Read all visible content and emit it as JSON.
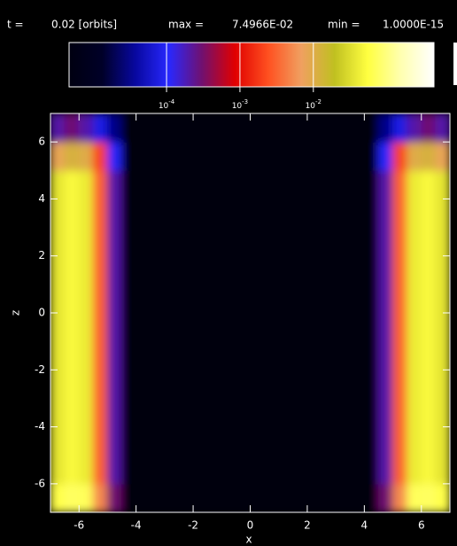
{
  "chart_data": {
    "type": "heatmap",
    "t_label": "t =",
    "t_value": "0.02 [orbits]",
    "max_label": "max =",
    "max": "7.4966E-02",
    "min_label": "min =",
    "min": "1.0000E-15",
    "colorbar": {
      "scale": "log",
      "clim": [
        4.7e-06,
        0.44
      ],
      "colormap": [
        "#000010",
        "#000028",
        "#0808a0",
        "#2828ff",
        "#701070",
        "#e00000",
        "#ff5020",
        "#f0a060",
        "#c0c020",
        "#ffff40",
        "#ffffb0",
        "#ffffff"
      ],
      "ticks": [
        {
          "value": 0.0001,
          "base": "10",
          "exponent": "-4"
        },
        {
          "value": 0.001,
          "base": "10",
          "exponent": "-3"
        },
        {
          "value": 0.01,
          "base": "10",
          "exponent": "-2"
        }
      ]
    },
    "xlabel": "x",
    "ylabel": "z",
    "xlim": [
      -7,
      7
    ],
    "ylim": [
      -7,
      7
    ],
    "xticks": [
      -6,
      -4,
      -2,
      0,
      2,
      4,
      6
    ],
    "yticks": [
      -6,
      -4,
      -2,
      0,
      2,
      4,
      6
    ],
    "x": [
      -6.75,
      -6.25,
      -5.75,
      -5.25,
      -4.75,
      -4.25,
      -3.75,
      -3.25,
      -2.75,
      -2.25,
      -1.75,
      -1.25,
      -0.75,
      -0.25,
      0.25,
      0.75,
      1.25,
      1.75,
      2.25,
      2.75,
      3.25,
      3.75,
      4.25,
      4.75,
      5.25,
      5.75,
      6.25,
      6.75
    ],
    "y": [
      -6.5,
      -5.5,
      -4.5,
      -3.5,
      -2.5,
      -1.5,
      -0.5,
      0.5,
      1.5,
      2.5,
      3.5,
      4.5,
      5.5,
      6.5
    ],
    "values": [
      [
        0.06,
        0.074,
        0.07,
        0.005,
        0.0003,
        1e-15,
        1e-15,
        1e-15,
        1e-15,
        1e-15,
        1e-15,
        1e-15,
        1e-15,
        1e-15,
        1e-15,
        1e-15,
        1e-15,
        1e-15,
        1e-15,
        1e-15,
        1e-15,
        1e-15,
        1e-15,
        0.0003,
        0.005,
        0.07,
        0.074,
        0.06
      ],
      [
        0.035,
        0.05,
        0.04,
        0.003,
        0.0002,
        1e-15,
        1e-15,
        1e-15,
        1e-15,
        1e-15,
        1e-15,
        1e-15,
        1e-15,
        1e-15,
        1e-15,
        1e-15,
        1e-15,
        1e-15,
        1e-15,
        1e-15,
        1e-15,
        1e-15,
        1e-15,
        0.0002,
        0.003,
        0.04,
        0.05,
        0.035
      ],
      [
        0.035,
        0.05,
        0.04,
        0.003,
        0.0002,
        1e-15,
        1e-15,
        1e-15,
        1e-15,
        1e-15,
        1e-15,
        1e-15,
        1e-15,
        1e-15,
        1e-15,
        1e-15,
        1e-15,
        1e-15,
        1e-15,
        1e-15,
        1e-15,
        1e-15,
        1e-15,
        0.0002,
        0.003,
        0.04,
        0.05,
        0.035
      ],
      [
        0.035,
        0.05,
        0.04,
        0.003,
        0.0002,
        1e-15,
        1e-15,
        1e-15,
        1e-15,
        1e-15,
        1e-15,
        1e-15,
        1e-15,
        1e-15,
        1e-15,
        1e-15,
        1e-15,
        1e-15,
        1e-15,
        1e-15,
        1e-15,
        1e-15,
        1e-15,
        0.0002,
        0.003,
        0.04,
        0.05,
        0.035
      ],
      [
        0.035,
        0.05,
        0.04,
        0.003,
        0.0002,
        1e-15,
        1e-15,
        1e-15,
        1e-15,
        1e-15,
        1e-15,
        1e-15,
        1e-15,
        1e-15,
        1e-15,
        1e-15,
        1e-15,
        1e-15,
        1e-15,
        1e-15,
        1e-15,
        1e-15,
        1e-15,
        0.0002,
        0.003,
        0.04,
        0.05,
        0.035
      ],
      [
        0.035,
        0.05,
        0.04,
        0.003,
        0.0002,
        1e-15,
        1e-15,
        1e-15,
        1e-15,
        1e-15,
        1e-15,
        1e-15,
        1e-15,
        1e-15,
        1e-15,
        1e-15,
        1e-15,
        1e-15,
        1e-15,
        1e-15,
        1e-15,
        1e-15,
        1e-15,
        0.0002,
        0.003,
        0.04,
        0.05,
        0.035
      ],
      [
        0.035,
        0.05,
        0.04,
        0.003,
        0.0002,
        1e-15,
        1e-15,
        1e-15,
        1e-15,
        1e-15,
        1e-15,
        1e-15,
        1e-15,
        1e-15,
        1e-15,
        1e-15,
        1e-15,
        1e-15,
        1e-15,
        1e-15,
        1e-15,
        1e-15,
        1e-15,
        0.0002,
        0.003,
        0.04,
        0.05,
        0.035
      ],
      [
        0.035,
        0.05,
        0.04,
        0.003,
        0.0002,
        1e-15,
        1e-15,
        1e-15,
        1e-15,
        1e-15,
        1e-15,
        1e-15,
        1e-15,
        1e-15,
        1e-15,
        1e-15,
        1e-15,
        1e-15,
        1e-15,
        1e-15,
        1e-15,
        1e-15,
        1e-15,
        0.0002,
        0.003,
        0.04,
        0.05,
        0.035
      ],
      [
        0.035,
        0.05,
        0.04,
        0.003,
        0.0002,
        1e-15,
        1e-15,
        1e-15,
        1e-15,
        1e-15,
        1e-15,
        1e-15,
        1e-15,
        1e-15,
        1e-15,
        1e-15,
        1e-15,
        1e-15,
        1e-15,
        1e-15,
        1e-15,
        1e-15,
        1e-15,
        0.0002,
        0.003,
        0.04,
        0.05,
        0.035
      ],
      [
        0.035,
        0.05,
        0.04,
        0.003,
        0.0002,
        1e-15,
        1e-15,
        1e-15,
        1e-15,
        1e-15,
        1e-15,
        1e-15,
        1e-15,
        1e-15,
        1e-15,
        1e-15,
        1e-15,
        1e-15,
        1e-15,
        1e-15,
        1e-15,
        1e-15,
        1e-15,
        0.0002,
        0.003,
        0.04,
        0.05,
        0.035
      ],
      [
        0.035,
        0.05,
        0.04,
        0.003,
        0.0002,
        1e-15,
        1e-15,
        1e-15,
        1e-15,
        1e-15,
        1e-15,
        1e-15,
        1e-15,
        1e-15,
        1e-15,
        1e-15,
        1e-15,
        1e-15,
        1e-15,
        1e-15,
        1e-15,
        1e-15,
        1e-15,
        0.0002,
        0.003,
        0.04,
        0.05,
        0.035
      ],
      [
        0.035,
        0.05,
        0.04,
        0.003,
        0.0002,
        1e-15,
        1e-15,
        1e-15,
        1e-15,
        1e-15,
        1e-15,
        1e-15,
        1e-15,
        1e-15,
        1e-15,
        1e-15,
        1e-15,
        1e-15,
        1e-15,
        1e-15,
        1e-15,
        1e-15,
        1e-15,
        0.0002,
        0.003,
        0.04,
        0.05,
        0.035
      ],
      [
        0.008,
        0.012,
        0.01,
        0.002,
        0.0001,
        1e-15,
        1e-15,
        1e-15,
        1e-15,
        1e-15,
        1e-15,
        1e-15,
        1e-15,
        1e-15,
        1e-15,
        1e-15,
        1e-15,
        1e-15,
        1e-15,
        1e-15,
        1e-15,
        1e-15,
        1e-15,
        0.0001,
        0.002,
        0.01,
        0.012,
        0.008
      ],
      [
        0.0002,
        0.0003,
        0.0002,
        8e-05,
        3e-05,
        1e-15,
        1e-15,
        1e-15,
        1e-15,
        1e-15,
        1e-15,
        1e-15,
        1e-15,
        1e-15,
        1e-15,
        1e-15,
        1e-15,
        1e-15,
        1e-15,
        1e-15,
        1e-15,
        1e-15,
        1e-15,
        3e-05,
        8e-05,
        0.0002,
        0.0003,
        0.0002
      ]
    ]
  }
}
